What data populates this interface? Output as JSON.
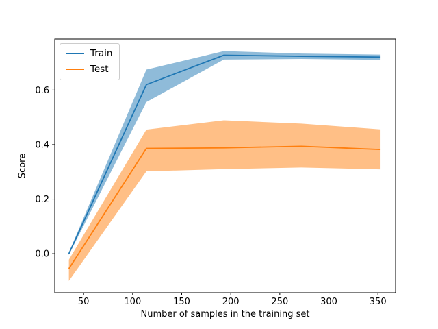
{
  "chart_data": {
    "type": "line",
    "title": "",
    "xlabel": "Number of samples in the training set",
    "ylabel": "Score",
    "xlim": [
      20.6,
      368.0
    ],
    "ylim": [
      -0.143,
      0.787
    ],
    "xticks": [
      50,
      100,
      150,
      200,
      250,
      300,
      350
    ],
    "yticks": [
      0.0,
      0.2,
      0.4,
      0.6
    ],
    "grid": false,
    "x": [
      35,
      114,
      193,
      272,
      352
    ],
    "series": [
      {
        "name": "Train",
        "color": "#1f77b4",
        "values": [
          0.0,
          0.62,
          0.728,
          0.724,
          0.721
        ],
        "band_lower": [
          -0.004,
          0.556,
          0.712,
          0.714,
          0.711
        ],
        "band_upper": [
          0.004,
          0.675,
          0.743,
          0.734,
          0.73
        ],
        "band_opacity": 0.5
      },
      {
        "name": "Test",
        "color": "#ff7f0e",
        "values": [
          -0.055,
          0.386,
          0.388,
          0.394,
          0.382
        ],
        "band_lower": [
          -0.1,
          0.302,
          0.31,
          0.316,
          0.309
        ],
        "band_upper": [
          -0.022,
          0.455,
          0.489,
          0.477,
          0.456
        ],
        "band_opacity": 0.5
      }
    ],
    "legend": {
      "position": "upper left",
      "labels": [
        "Train",
        "Test"
      ]
    }
  }
}
